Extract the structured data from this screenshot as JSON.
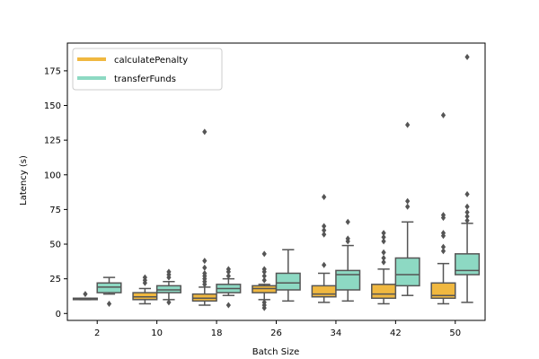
{
  "chart_data": {
    "type": "box",
    "xlabel": "Batch Size",
    "ylabel": "Latency (s)",
    "categories": [
      "2",
      "10",
      "18",
      "26",
      "34",
      "42",
      "50"
    ],
    "ylim": [
      -5,
      195
    ],
    "yticks": [
      0,
      25,
      50,
      75,
      100,
      125,
      150,
      175
    ],
    "grid": false,
    "legend_position": "top-left",
    "series": [
      {
        "name": "calculatePenalty",
        "color": "#f0b840",
        "boxes": [
          {
            "min": 10,
            "q1": 10,
            "median": 10.5,
            "q3": 11,
            "max": 11,
            "outliers": [
              14
            ]
          },
          {
            "min": 7,
            "q1": 10,
            "median": 12,
            "q3": 15,
            "max": 18,
            "outliers": [
              22,
              24,
              26
            ]
          },
          {
            "min": 6,
            "q1": 9,
            "median": 11,
            "q3": 14,
            "max": 19,
            "outliers": [
              21,
              23,
              25,
              27,
              29,
              33,
              38,
              131
            ]
          },
          {
            "min": 10,
            "q1": 15,
            "median": 18,
            "q3": 20,
            "max": 21,
            "outliers": [
              4,
              6,
              8,
              24,
              27,
              30,
              32,
              43
            ]
          },
          {
            "min": 8,
            "q1": 12,
            "median": 14,
            "q3": 20,
            "max": 29,
            "outliers": [
              35,
              57,
              60,
              63,
              84
            ]
          },
          {
            "min": 7,
            "q1": 11,
            "median": 14,
            "q3": 21,
            "max": 32,
            "outliers": [
              37,
              40,
              44,
              52,
              55,
              58
            ]
          },
          {
            "min": 7,
            "q1": 11,
            "median": 13,
            "q3": 22,
            "max": 36,
            "outliers": [
              45,
              48,
              56,
              58,
              69,
              71,
              143
            ]
          }
        ]
      },
      {
        "name": "transferFunds",
        "color": "#8dd9c3",
        "boxes": [
          {
            "min": 14,
            "q1": 15,
            "median": 19,
            "q3": 22,
            "max": 26,
            "outliers": [
              7
            ]
          },
          {
            "min": 10,
            "q1": 15,
            "median": 17,
            "q3": 20,
            "max": 23,
            "outliers": [
              8,
              26,
              28,
              30
            ]
          },
          {
            "min": 13,
            "q1": 15,
            "median": 18,
            "q3": 21,
            "max": 25,
            "outliers": [
              6,
              27,
              30,
              32
            ]
          },
          {
            "min": 9,
            "q1": 17,
            "median": 22,
            "q3": 29,
            "max": 46,
            "outliers": []
          },
          {
            "min": 9,
            "q1": 17,
            "median": 28,
            "q3": 31,
            "max": 49,
            "outliers": [
              52,
              54,
              66
            ]
          },
          {
            "min": 13,
            "q1": 20,
            "median": 28,
            "q3": 40,
            "max": 66,
            "outliers": [
              77,
              81,
              136
            ]
          },
          {
            "min": 8,
            "q1": 28,
            "median": 31,
            "q3": 43,
            "max": 65,
            "outliers": [
              67,
              70,
              73,
              77,
              86,
              185
            ]
          }
        ]
      }
    ]
  }
}
